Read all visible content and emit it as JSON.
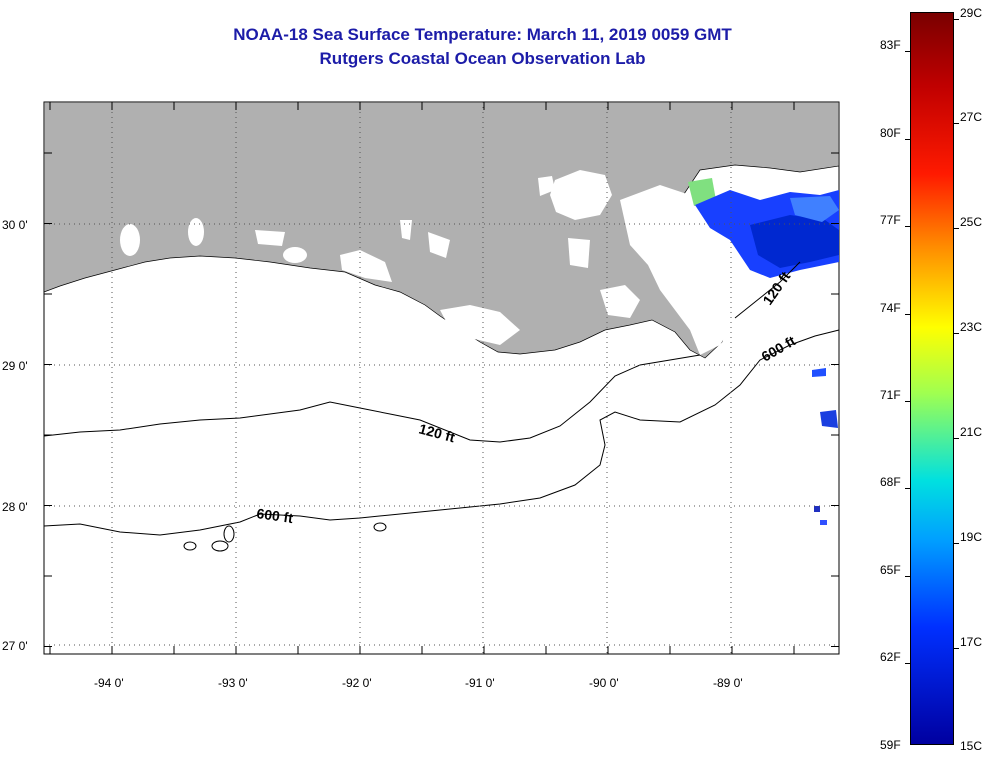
{
  "title": {
    "line1": "NOAA-18 Sea Surface Temperature:  March 11, 2019 0059 GMT",
    "line2": "Rutgers Coastal Ocean Observation Lab"
  },
  "map": {
    "latitude_labels": [
      "30 0'",
      "29 0'",
      "28 0'",
      "27 0'"
    ],
    "longitude_labels": [
      "-94 0'",
      "-93 0'",
      "-92 0'",
      "-91 0'",
      "-90 0'",
      "-89 0'"
    ],
    "contour_labels": [
      "120 ft",
      "600 ft",
      "120 ft",
      "600 ft"
    ],
    "colors": {
      "land": "#b0b0b0",
      "water": "#ffffff",
      "cloud": "#ffffff"
    }
  },
  "colorbar": {
    "fahrenheit": [
      "83F",
      "80F",
      "77F",
      "74F",
      "71F",
      "68F",
      "65F",
      "62F",
      "59F"
    ],
    "celsius": [
      "29C",
      "27C",
      "25C",
      "23C",
      "21C",
      "19C",
      "17C",
      "15C"
    ],
    "range_c": [
      15,
      29
    ]
  }
}
